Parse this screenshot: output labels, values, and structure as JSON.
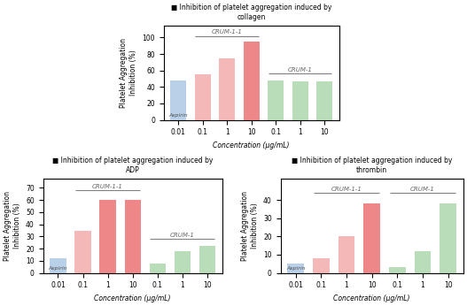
{
  "chart_data": [
    {
      "type": "bar",
      "title": "■ Inhibition of platelet aggregation induced by\ncollagen",
      "categories": [
        "0.01",
        "0.1",
        "1",
        "10",
        "0.1",
        "1",
        "10"
      ],
      "values": [
        48,
        55,
        75,
        95,
        48,
        47,
        47
      ],
      "colors": [
        "#b8d0e8",
        "#f5b8b8",
        "#f5b8b8",
        "#ee8888",
        "#b8ddb8",
        "#b8ddb8",
        "#b8ddb8"
      ],
      "ylabel": "Platelet Aggregation\nInhibition (%)",
      "xlabel": "Concentration (μg/mL)",
      "ylim": [
        0,
        115
      ],
      "yticks": [
        0,
        20,
        40,
        60,
        80,
        100
      ],
      "annotations": [
        {
          "text": "Aspirin",
          "x": 0
        },
        {
          "text": "CRUM-1-1",
          "x_from": 1,
          "x_to": 3,
          "y": 102
        },
        {
          "text": "CRUM-1",
          "x_from": 4,
          "x_to": 6,
          "y": 56
        }
      ]
    },
    {
      "type": "bar",
      "title": "■ Inhibition of platelet aggregation induced by\nADP",
      "categories": [
        "0.01",
        "0.1",
        "1",
        "10",
        "0.1",
        "1",
        "10"
      ],
      "values": [
        12,
        35,
        60,
        60,
        8,
        18,
        22
      ],
      "colors": [
        "#b8d0e8",
        "#f5b8b8",
        "#ee8888",
        "#ee8888",
        "#b8ddb8",
        "#b8ddb8",
        "#b8ddb8"
      ],
      "ylabel": "Platelet Aggregation\nInhibition (%)",
      "xlabel": "Concentration (μg/mL)",
      "ylim": [
        0,
        78
      ],
      "yticks": [
        0,
        10,
        20,
        30,
        40,
        50,
        60,
        70
      ],
      "annotations": [
        {
          "text": "Aspirin",
          "x": 0
        },
        {
          "text": "CRUM-1-1",
          "x_from": 1,
          "x_to": 3,
          "y": 68
        },
        {
          "text": "CRUM-1",
          "x_from": 4,
          "x_to": 6,
          "y": 28
        }
      ]
    },
    {
      "type": "bar",
      "title": "■ Inhibition of platelet aggregation induced by\nthrombin",
      "categories": [
        "0.01",
        "0.1",
        "1",
        "10",
        "0.1",
        "1",
        "10"
      ],
      "values": [
        5,
        8,
        20,
        38,
        3,
        12,
        38
      ],
      "colors": [
        "#b8d0e8",
        "#f5b8b8",
        "#f5b8b8",
        "#ee8888",
        "#b8ddb8",
        "#b8ddb8",
        "#b8ddb8"
      ],
      "ylabel": "Platelet Aggregation\nInhibition (%)",
      "xlabel": "Concentration (μg/mL)",
      "ylim": [
        0,
        52
      ],
      "yticks": [
        0,
        10,
        20,
        30,
        40
      ],
      "annotations": [
        {
          "text": "Aspirin",
          "x": 0
        },
        {
          "text": "CRUM-1-1",
          "x_from": 1,
          "x_to": 3,
          "y": 44
        },
        {
          "text": "CRUM-1",
          "x_from": 4,
          "x_to": 6,
          "y": 44
        }
      ]
    }
  ]
}
